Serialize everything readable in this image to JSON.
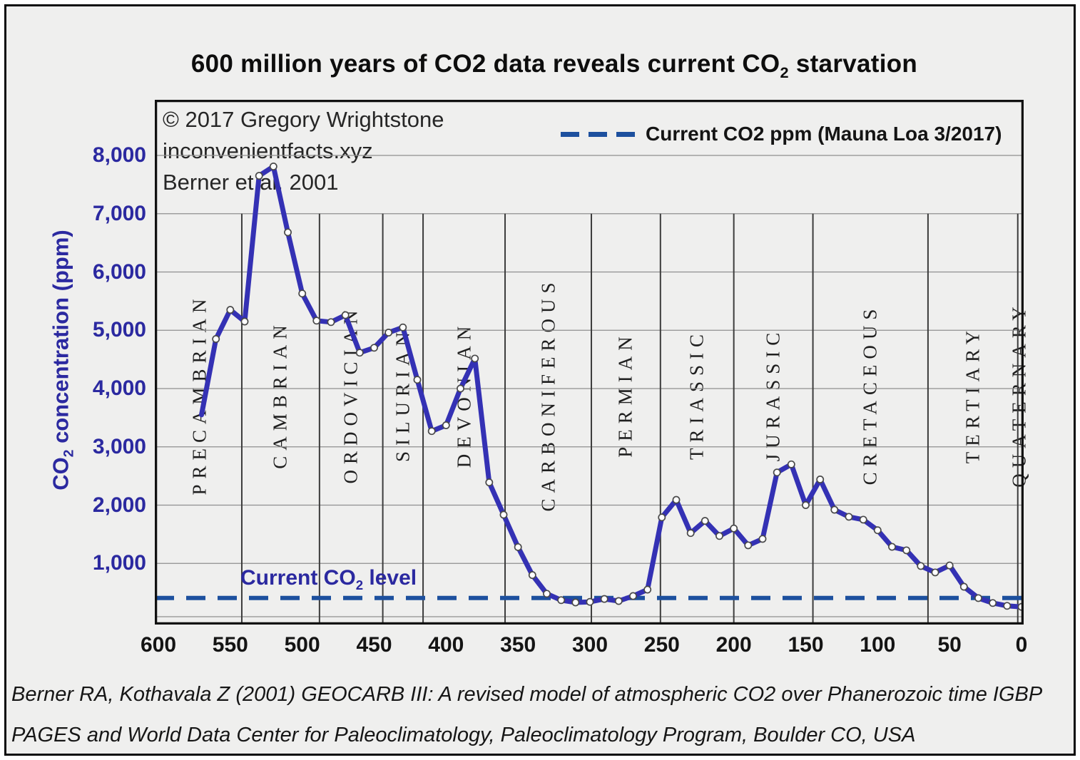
{
  "title": {
    "part1": "600 million years of CO2 data reveals current CO",
    "subscript": "2",
    "part2": " starvation"
  },
  "plot_annotations": {
    "copyright": "© 2017 Gregory Wrightstone",
    "website": "inconvenientfacts.xyz",
    "source": "Berner et al, 2001",
    "current_level": {
      "part1": "Current CO",
      "subscript": "2",
      "part2": " level"
    }
  },
  "legend": {
    "label": "Current CO2 ppm (Mauna Loa 3/2017)"
  },
  "y_axis": {
    "title": {
      "part1": "CO",
      "subscript": "2",
      "part2": " concentration (ppm)"
    },
    "ticks": [
      {
        "value": 8000,
        "label": "8,000"
      },
      {
        "value": 7000,
        "label": "7,000"
      },
      {
        "value": 6000,
        "label": "6,000"
      },
      {
        "value": 5000,
        "label": "5,000"
      },
      {
        "value": 4000,
        "label": "4,000"
      },
      {
        "value": 3000,
        "label": "3,000"
      },
      {
        "value": 2000,
        "label": "2,000"
      },
      {
        "value": 1000,
        "label": "1,000"
      }
    ]
  },
  "x_axis": {
    "ticks": [
      600,
      550,
      500,
      450,
      400,
      350,
      300,
      250,
      200,
      150,
      100,
      50,
      0
    ]
  },
  "caption": {
    "line1": "Berner RA, Kothavala Z (2001) GEOCARB III: A revised model of atmospheric CO2 over Phanerozoic time IGBP",
    "line2": "PAGES and World Data Center for Paleoclimatology, Paleoclimatology Program, Boulder CO, USA"
  },
  "colors": {
    "curve": "#3431b4",
    "marker_fill": "#ffffff",
    "marker_stroke": "#4a4a4a",
    "dashed_line": "#1d509e",
    "blue_text": "#2b29a0",
    "grid": "#8f8f8f",
    "divider": "#3c3c3c",
    "border": "#111111"
  },
  "chart_data": {
    "type": "line",
    "title": "600 million years of CO2 data reveals current CO2 starvation",
    "xlabel": "",
    "ylabel": "CO2 concentration (ppm)",
    "xlim": [
      600,
      0
    ],
    "ylim": [
      0,
      8950
    ],
    "grid": "horizontal",
    "legend_position": "top-right",
    "series": [
      {
        "name": "CO2 concentration (Berner et al, 2001)",
        "x": [
          570,
          560,
          550,
          540,
          530,
          520,
          510,
          500,
          490,
          480,
          470,
          460,
          450,
          440,
          430,
          420,
          410,
          400,
          390,
          380,
          370,
          360,
          350,
          340,
          330,
          320,
          310,
          300,
          290,
          280,
          270,
          260,
          250,
          240,
          230,
          220,
          210,
          200,
          190,
          180,
          170,
          160,
          150,
          140,
          130,
          120,
          110,
          100,
          90,
          80,
          70,
          60,
          50,
          40,
          30,
          20,
          10,
          0
        ],
        "y": [
          3550,
          4850,
          5350,
          5150,
          7650,
          7810,
          6680,
          5630,
          5165,
          5140,
          5260,
          4615,
          4700,
          4960,
          5050,
          4150,
          3270,
          3370,
          4000,
          4515,
          2390,
          1835,
          1280,
          800,
          480,
          370,
          330,
          340,
          390,
          355,
          440,
          550,
          1790,
          2090,
          1520,
          1730,
          1470,
          1600,
          1310,
          1420,
          2560,
          2700,
          2000,
          2440,
          1920,
          1800,
          1750,
          1570,
          1285,
          1225,
          955,
          845,
          965,
          600,
          405,
          320,
          272,
          255
        ]
      }
    ],
    "reference_line": {
      "label": "Current CO2 ppm (Mauna Loa 3/2017)",
      "value": 407,
      "style": "dashed"
    },
    "periods": [
      {
        "name": "PRECAMBRIAN",
        "from": 600,
        "to": 542
      },
      {
        "name": "CAMBRIAN",
        "from": 542,
        "to": 488
      },
      {
        "name": "ORDOVICIAN",
        "from": 488,
        "to": 444
      },
      {
        "name": "SILURIAN",
        "from": 444,
        "to": 416
      },
      {
        "name": "DEVONIAN",
        "from": 416,
        "to": 359
      },
      {
        "name": "CARBONIFEROUS",
        "from": 359,
        "to": 299
      },
      {
        "name": "PERMIAN",
        "from": 299,
        "to": 251
      },
      {
        "name": "TRIASSIC",
        "from": 251,
        "to": 200
      },
      {
        "name": "JURASSIC",
        "from": 200,
        "to": 145
      },
      {
        "name": "CRETACEOUS",
        "from": 145,
        "to": 65
      },
      {
        "name": "TERTIARY",
        "from": 65,
        "to": 2.6
      },
      {
        "name": "QUATERNARY",
        "from": 2.6,
        "to": 0
      }
    ]
  }
}
